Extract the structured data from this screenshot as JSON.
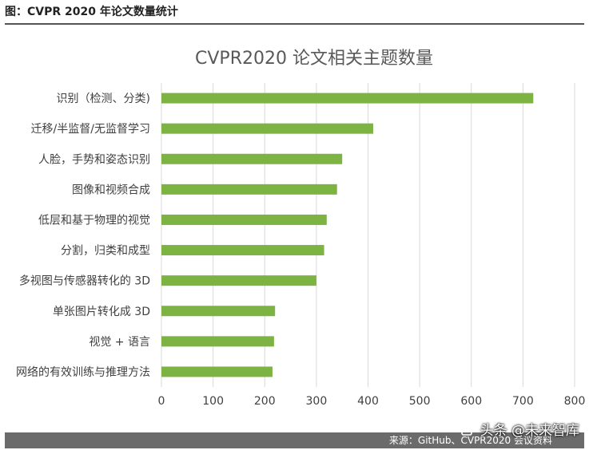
{
  "caption": "图：CVPR 2020 年论文数量统计",
  "footer": {
    "source": "来源：GitHub、CVPR2020 会议资料"
  },
  "watermark": {
    "icon": "toutiao-logo-icon",
    "text": "头条 @未来智库"
  },
  "colors": {
    "bar": "#7cb342",
    "grid": "#d9d9d9",
    "title": "#595959",
    "label": "#404040"
  },
  "chart_data": {
    "type": "bar",
    "orientation": "horizontal",
    "title": "CVPR2020 论文相关主题数量",
    "categories": [
      "识别（检测、分类)",
      "迁移/半监督/无监督学习",
      "人脸，手势和姿态识别",
      "图像和视频合成",
      "低层和基于物理的视觉",
      "分割，归类和成型",
      "多视图与传感器转化的 3D",
      "单张图片转化成 3D",
      "视觉 + 语言",
      "网络的有效训练与推理方法"
    ],
    "values": [
      720,
      410,
      350,
      340,
      320,
      315,
      300,
      220,
      218,
      215
    ],
    "xlim": [
      0,
      800
    ],
    "xticks": [
      0,
      100,
      200,
      300,
      400,
      500,
      600,
      700,
      800
    ],
    "grid": true,
    "legend": "none"
  }
}
